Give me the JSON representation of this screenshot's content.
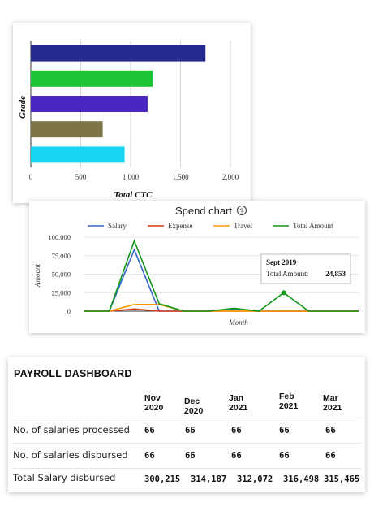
{
  "ctc_chart": {
    "xlabel": "Total CTC",
    "ylabel": "Grade",
    "ticks": [
      "0",
      "500",
      "1,000",
      "1,500",
      "2,000"
    ]
  },
  "spend_chart": {
    "title": "Spend chart",
    "help_icon": "question-circle-icon",
    "xlabel": "Month",
    "ylabel": "Amount",
    "y_ticks": [
      "100,000",
      "75,000",
      "50,000",
      "25,000",
      "0"
    ],
    "tooltip": {
      "title": "Sept 2019",
      "label": "Total Amount:",
      "value": "24,853"
    }
  },
  "payroll": {
    "title": "PAYROLL DASHBOARD",
    "months": [
      {
        "m": "Nov",
        "y": "2020"
      },
      {
        "m": "Dec",
        "y": "2020"
      },
      {
        "m": "Jan",
        "y": "2021"
      },
      {
        "m": "Feb",
        "y": "2021"
      },
      {
        "m": "Mar",
        "y": "2021"
      }
    ],
    "rows": [
      {
        "label": "No. of salaries processed",
        "values": [
          "66",
          "66",
          "66",
          "66",
          "66"
        ]
      },
      {
        "label": "No. of salaries disbursed",
        "values": [
          "66",
          "66",
          "66",
          "66",
          "66"
        ]
      },
      {
        "label": "Total Salary disbursed",
        "values": [
          "300,215",
          "314,187",
          "312,072",
          "316,498",
          "315,465"
        ]
      }
    ]
  },
  "chart_data": [
    {
      "type": "bar",
      "orientation": "horizontal",
      "title": "",
      "xlabel": "Total CTC",
      "ylabel": "Grade",
      "xlim": [
        0,
        2000
      ],
      "grid": true,
      "values": [
        1750,
        1220,
        1170,
        720,
        940
      ],
      "colors": [
        "#242a8e",
        "#1ec337",
        "#4a26c0",
        "#7d7447",
        "#18d3f2"
      ]
    },
    {
      "type": "line",
      "title": "Spend chart",
      "xlabel": "Month",
      "ylabel": "Amount",
      "ylim": [
        0,
        100000
      ],
      "legend": "top",
      "x": [
        0,
        1,
        2,
        3,
        4,
        5,
        6,
        7,
        8,
        9,
        10,
        11
      ],
      "series": [
        {
          "name": "Salary",
          "color": "#3366cc",
          "values": [
            0,
            0,
            83000,
            0,
            0,
            0,
            3000,
            0,
            0,
            0,
            0,
            0
          ]
        },
        {
          "name": "Expense",
          "color": "#dc3912",
          "values": [
            0,
            0,
            3000,
            0,
            0,
            0,
            0,
            0,
            0,
            0,
            0,
            0
          ]
        },
        {
          "name": "Travel",
          "color": "#ff9900",
          "values": [
            0,
            0,
            9000,
            9000,
            0,
            0,
            0,
            0,
            0,
            0,
            0,
            0
          ]
        },
        {
          "name": "Total Amount",
          "color": "#109618",
          "values": [
            0,
            0,
            95000,
            10000,
            0,
            0,
            4000,
            0,
            24853,
            0,
            0,
            0
          ]
        }
      ]
    }
  ]
}
